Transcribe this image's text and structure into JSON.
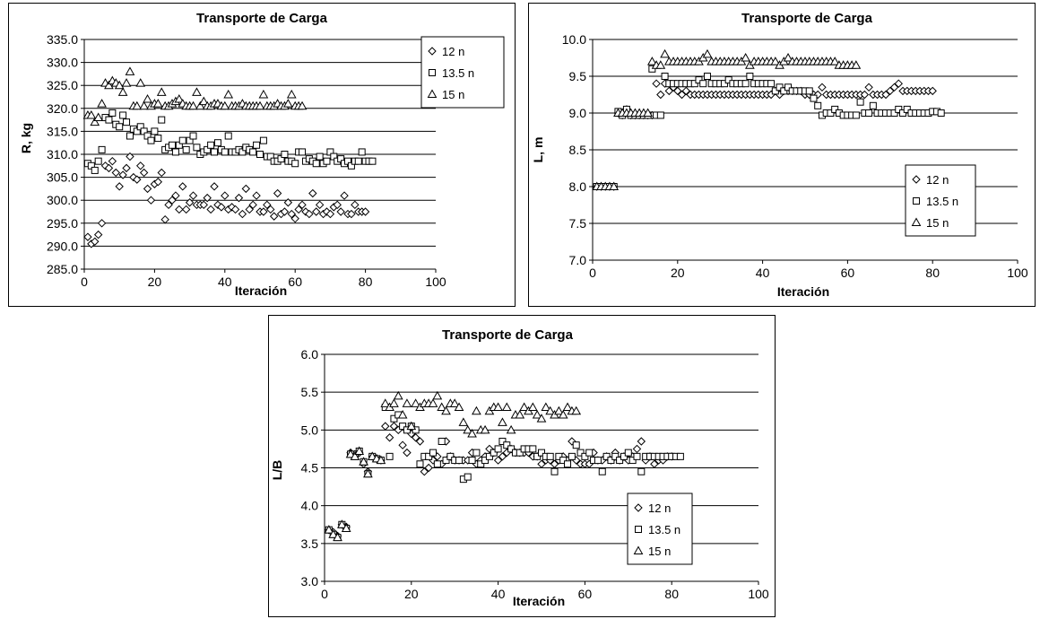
{
  "chart_data": [
    {
      "type": "scatter",
      "title": "Transporte de Carga",
      "xlabel": "Iteración",
      "ylabel": "R, kg",
      "xlim": [
        0,
        100
      ],
      "ylim": [
        285,
        335
      ],
      "xticks": [
        "0",
        "20",
        "40",
        "60",
        "80",
        "100"
      ],
      "yticks": [
        "285.0",
        "290.0",
        "295.0",
        "300.0",
        "305.0",
        "310.0",
        "315.0",
        "320.0",
        "325.0",
        "330.0",
        "335.0"
      ],
      "grid": "horizontal",
      "legend_position": "top-right",
      "series": [
        {
          "name": "12 n",
          "marker": "diamond",
          "values": [
            292.0,
            290.5,
            291.0,
            292.5,
            295.0,
            307.5,
            307.0,
            308.5,
            306.0,
            303.0,
            305.5,
            307.0,
            309.5,
            305.0,
            304.5,
            307.5,
            306.0,
            302.5,
            300.0,
            303.5,
            304.0,
            306.0,
            295.8,
            299.0,
            300.0,
            301.0,
            298.0,
            303.0,
            298.0,
            299.5,
            301.0,
            299.0,
            299.0,
            299.0,
            300.5,
            298.0,
            303.0,
            299.0,
            298.5,
            301.0,
            298.0,
            298.5,
            298.0,
            300.5,
            297.0,
            302.5,
            298.0,
            299.0,
            301.0,
            297.5,
            297.5,
            299.0,
            298.0,
            296.5,
            301.5,
            297.0,
            297.5,
            299.5,
            297.0,
            296.0,
            298.0,
            299.0,
            297.5,
            297.0,
            301.5,
            297.5,
            299.0,
            297.0,
            297.5,
            297.0,
            298.5,
            299.0,
            297.5,
            301.0,
            297.0,
            297.0,
            299.0,
            297.5,
            297.5,
            297.5
          ]
        },
        {
          "name": "13.5 n",
          "marker": "square",
          "values": [
            308.0,
            307.5,
            306.5,
            308.5,
            311.0,
            318.0,
            317.5,
            319.0,
            316.5,
            316.0,
            318.5,
            317.0,
            314.0,
            315.5,
            315.0,
            316.0,
            315.0,
            314.0,
            313.0,
            315.0,
            313.5,
            317.5,
            311.0,
            311.5,
            312.0,
            310.5,
            312.0,
            313.0,
            311.0,
            313.0,
            314.0,
            311.5,
            310.0,
            310.5,
            311.0,
            312.0,
            310.5,
            312.5,
            311.0,
            310.5,
            314.0,
            310.5,
            310.5,
            311.0,
            310.5,
            311.5,
            311.0,
            310.5,
            312.0,
            310.0,
            313.0,
            309.5,
            309.5,
            308.5,
            308.5,
            309.0,
            310.0,
            308.5,
            308.5,
            308.0,
            310.5,
            310.5,
            308.5,
            309.0,
            308.5,
            308.0,
            309.5,
            308.0,
            308.5,
            310.5,
            309.5,
            308.5,
            309.0,
            308.0,
            308.5,
            307.5,
            308.5,
            308.5,
            310.5,
            308.5,
            308.5,
            308.5
          ]
        },
        {
          "name": "15 n",
          "marker": "triangle",
          "values": [
            318.5,
            318.5,
            317.0,
            318.0,
            321.0,
            325.5,
            325.0,
            326.0,
            325.5,
            325.0,
            323.5,
            325.5,
            328.0,
            320.5,
            320.5,
            325.5,
            320.5,
            322.0,
            320.5,
            321.0,
            321.0,
            323.5,
            320.5,
            320.5,
            321.0,
            321.5,
            322.0,
            321.0,
            320.5,
            320.5,
            320.5,
            323.5,
            320.5,
            321.5,
            320.5,
            320.5,
            321.0,
            321.0,
            320.5,
            320.5,
            323.0,
            320.5,
            320.5,
            320.5,
            321.0,
            320.5,
            320.5,
            320.5,
            320.5,
            320.5,
            323.0,
            320.5,
            320.5,
            320.5,
            321.0,
            320.5,
            320.5,
            321.0,
            323.0,
            320.5,
            320.5,
            320.5
          ]
        }
      ]
    },
    {
      "type": "scatter",
      "title": "Transporte de Carga",
      "xlabel": "Iteración",
      "ylabel": "L, m",
      "xlim": [
        0,
        100
      ],
      "ylim": [
        7.0,
        10.0
      ],
      "xticks": [
        "0",
        "20",
        "40",
        "60",
        "80",
        "100"
      ],
      "yticks": [
        "7.0",
        "7.5",
        "8.0",
        "8.5",
        "9.0",
        "9.5",
        "10.0"
      ],
      "grid": "horizontal",
      "legend_position": "right-middle",
      "series": [
        {
          "name": "12 n",
          "marker": "diamond",
          "values": [
            8.0,
            8.0,
            8.0,
            8.0,
            8.0,
            9.0,
            8.97,
            9.05,
            8.97,
            8.97,
            8.97,
            8.97,
            8.97,
            8.97,
            9.4,
            9.25,
            9.4,
            9.3,
            9.35,
            9.3,
            9.25,
            9.3,
            9.25,
            9.25,
            9.25,
            9.25,
            9.25,
            9.25,
            9.25,
            9.25,
            9.25,
            9.25,
            9.25,
            9.25,
            9.25,
            9.25,
            9.25,
            9.25,
            9.25,
            9.25,
            9.25,
            9.25,
            9.3,
            9.25,
            9.3,
            9.3,
            9.3,
            9.3,
            9.3,
            9.25,
            9.25,
            9.25,
            9.25,
            9.35,
            9.25,
            9.25,
            9.25,
            9.25,
            9.25,
            9.25,
            9.25,
            9.25,
            9.25,
            9.25,
            9.35,
            9.25,
            9.25,
            9.25,
            9.25,
            9.3,
            9.35,
            9.4,
            9.3,
            9.3,
            9.3,
            9.3,
            9.3,
            9.3,
            9.3,
            9.3
          ]
        },
        {
          "name": "13.5 n",
          "marker": "square",
          "values": [
            8.0,
            8.0,
            8.0,
            8.0,
            8.0,
            9.02,
            8.97,
            9.05,
            8.97,
            8.97,
            8.97,
            8.97,
            8.97,
            9.6,
            8.97,
            8.97,
            9.5,
            9.4,
            9.4,
            9.4,
            9.4,
            9.4,
            9.4,
            9.4,
            9.45,
            9.4,
            9.5,
            9.4,
            9.4,
            9.4,
            9.4,
            9.45,
            9.4,
            9.4,
            9.4,
            9.4,
            9.5,
            9.4,
            9.4,
            9.4,
            9.4,
            9.4,
            9.3,
            9.35,
            9.3,
            9.35,
            9.3,
            9.3,
            9.3,
            9.3,
            9.3,
            9.2,
            9.1,
            8.97,
            9.0,
            9.0,
            9.05,
            9.0,
            8.97,
            8.97,
            8.97,
            8.97,
            9.15,
            9.0,
            9.0,
            9.1,
            9.0,
            9.0,
            9.0,
            9.0,
            9.0,
            9.05,
            9.0,
            9.05,
            9.0,
            9.0,
            9.0,
            9.0,
            9.0,
            9.02,
            9.02,
            9.0
          ]
        },
        {
          "name": "15 n",
          "marker": "triangle",
          "values": [
            8.0,
            8.0,
            8.0,
            8.0,
            8.0,
            9.0,
            9.0,
            9.0,
            9.0,
            9.0,
            9.0,
            9.0,
            9.0,
            9.7,
            9.65,
            9.65,
            9.8,
            9.7,
            9.7,
            9.7,
            9.7,
            9.7,
            9.7,
            9.7,
            9.7,
            9.75,
            9.8,
            9.7,
            9.7,
            9.7,
            9.7,
            9.7,
            9.7,
            9.7,
            9.7,
            9.75,
            9.65,
            9.7,
            9.7,
            9.7,
            9.7,
            9.7,
            9.7,
            9.65,
            9.7,
            9.75,
            9.7,
            9.7,
            9.7,
            9.7,
            9.7,
            9.7,
            9.7,
            9.7,
            9.7,
            9.7,
            9.7,
            9.65,
            9.65,
            9.65,
            9.65,
            9.65
          ]
        }
      ]
    },
    {
      "type": "scatter",
      "title": "Transporte de Carga",
      "xlabel": "Iteración",
      "ylabel": "L/B",
      "xlim": [
        0,
        100
      ],
      "ylim": [
        3.0,
        6.0
      ],
      "xticks": [
        "0",
        "20",
        "40",
        "60",
        "80",
        "100"
      ],
      "yticks": [
        "3.0",
        "3.5",
        "4.0",
        "4.5",
        "5.0",
        "5.5",
        "6.0"
      ],
      "grid": "horizontal",
      "legend_position": "bottom-right",
      "series": [
        {
          "name": "12 n",
          "marker": "diamond",
          "values": [
            3.68,
            3.65,
            3.6,
            3.75,
            3.72,
            4.7,
            4.68,
            4.7,
            4.55,
            4.45,
            4.65,
            4.62,
            4.6,
            5.05,
            4.9,
            5.05,
            5.0,
            4.8,
            4.7,
            4.95,
            4.9,
            4.85,
            4.45,
            4.5,
            4.6,
            4.65,
            4.55,
            4.85,
            4.65,
            4.6,
            4.6,
            4.6,
            4.6,
            4.7,
            4.55,
            4.6,
            4.65,
            4.75,
            4.7,
            4.6,
            4.65,
            4.7,
            4.75,
            4.7,
            4.7,
            4.7,
            4.7,
            4.65,
            4.65,
            4.55,
            4.6,
            4.6,
            4.55,
            4.6,
            4.65,
            4.6,
            4.85,
            4.6,
            4.55,
            4.55,
            4.55,
            4.7,
            4.6,
            4.6,
            4.65,
            4.6,
            4.7,
            4.6,
            4.65,
            4.6,
            4.65,
            4.75,
            4.85,
            4.6,
            4.65,
            4.55,
            4.6,
            4.6,
            4.65,
            4.65
          ]
        },
        {
          "name": "13.5 n",
          "marker": "square",
          "values": [
            3.68,
            3.62,
            3.58,
            3.75,
            3.7,
            4.68,
            4.65,
            4.72,
            4.58,
            4.42,
            4.65,
            4.62,
            4.6,
            5.3,
            4.65,
            5.15,
            5.2,
            5.05,
            5.0,
            5.05,
            5.0,
            4.55,
            4.65,
            4.65,
            4.7,
            4.55,
            4.85,
            4.6,
            4.65,
            4.6,
            4.6,
            4.35,
            4.38,
            4.6,
            4.7,
            4.55,
            4.6,
            4.65,
            4.7,
            4.75,
            4.85,
            4.8,
            4.75,
            4.7,
            4.7,
            4.75,
            4.75,
            4.75,
            4.65,
            4.7,
            4.65,
            4.65,
            4.45,
            4.65,
            4.6,
            4.55,
            4.65,
            4.8,
            4.7,
            4.65,
            4.7,
            4.6,
            4.6,
            4.45,
            4.65,
            4.6,
            4.65,
            4.6,
            4.65,
            4.7,
            4.6,
            4.65,
            4.45,
            4.65,
            4.65,
            4.65,
            4.65,
            4.65,
            4.65,
            4.65,
            4.65,
            4.65
          ]
        },
        {
          "name": "15 n",
          "marker": "triangle",
          "values": [
            3.68,
            3.62,
            3.58,
            3.75,
            3.7,
            4.68,
            4.65,
            4.72,
            4.58,
            4.42,
            4.65,
            4.62,
            4.6,
            5.35,
            5.3,
            5.35,
            5.45,
            5.2,
            5.35,
            5.05,
            5.35,
            5.3,
            5.35,
            5.35,
            5.35,
            5.45,
            5.3,
            5.25,
            5.35,
            5.35,
            5.3,
            5.1,
            5.0,
            4.95,
            5.25,
            5.0,
            5.0,
            5.25,
            5.3,
            5.3,
            5.1,
            5.3,
            5.0,
            5.2,
            5.2,
            5.3,
            5.25,
            5.3,
            5.2,
            5.15,
            5.3,
            5.25,
            5.2,
            5.25,
            5.2,
            5.3,
            5.25,
            5.25
          ]
        }
      ]
    }
  ]
}
